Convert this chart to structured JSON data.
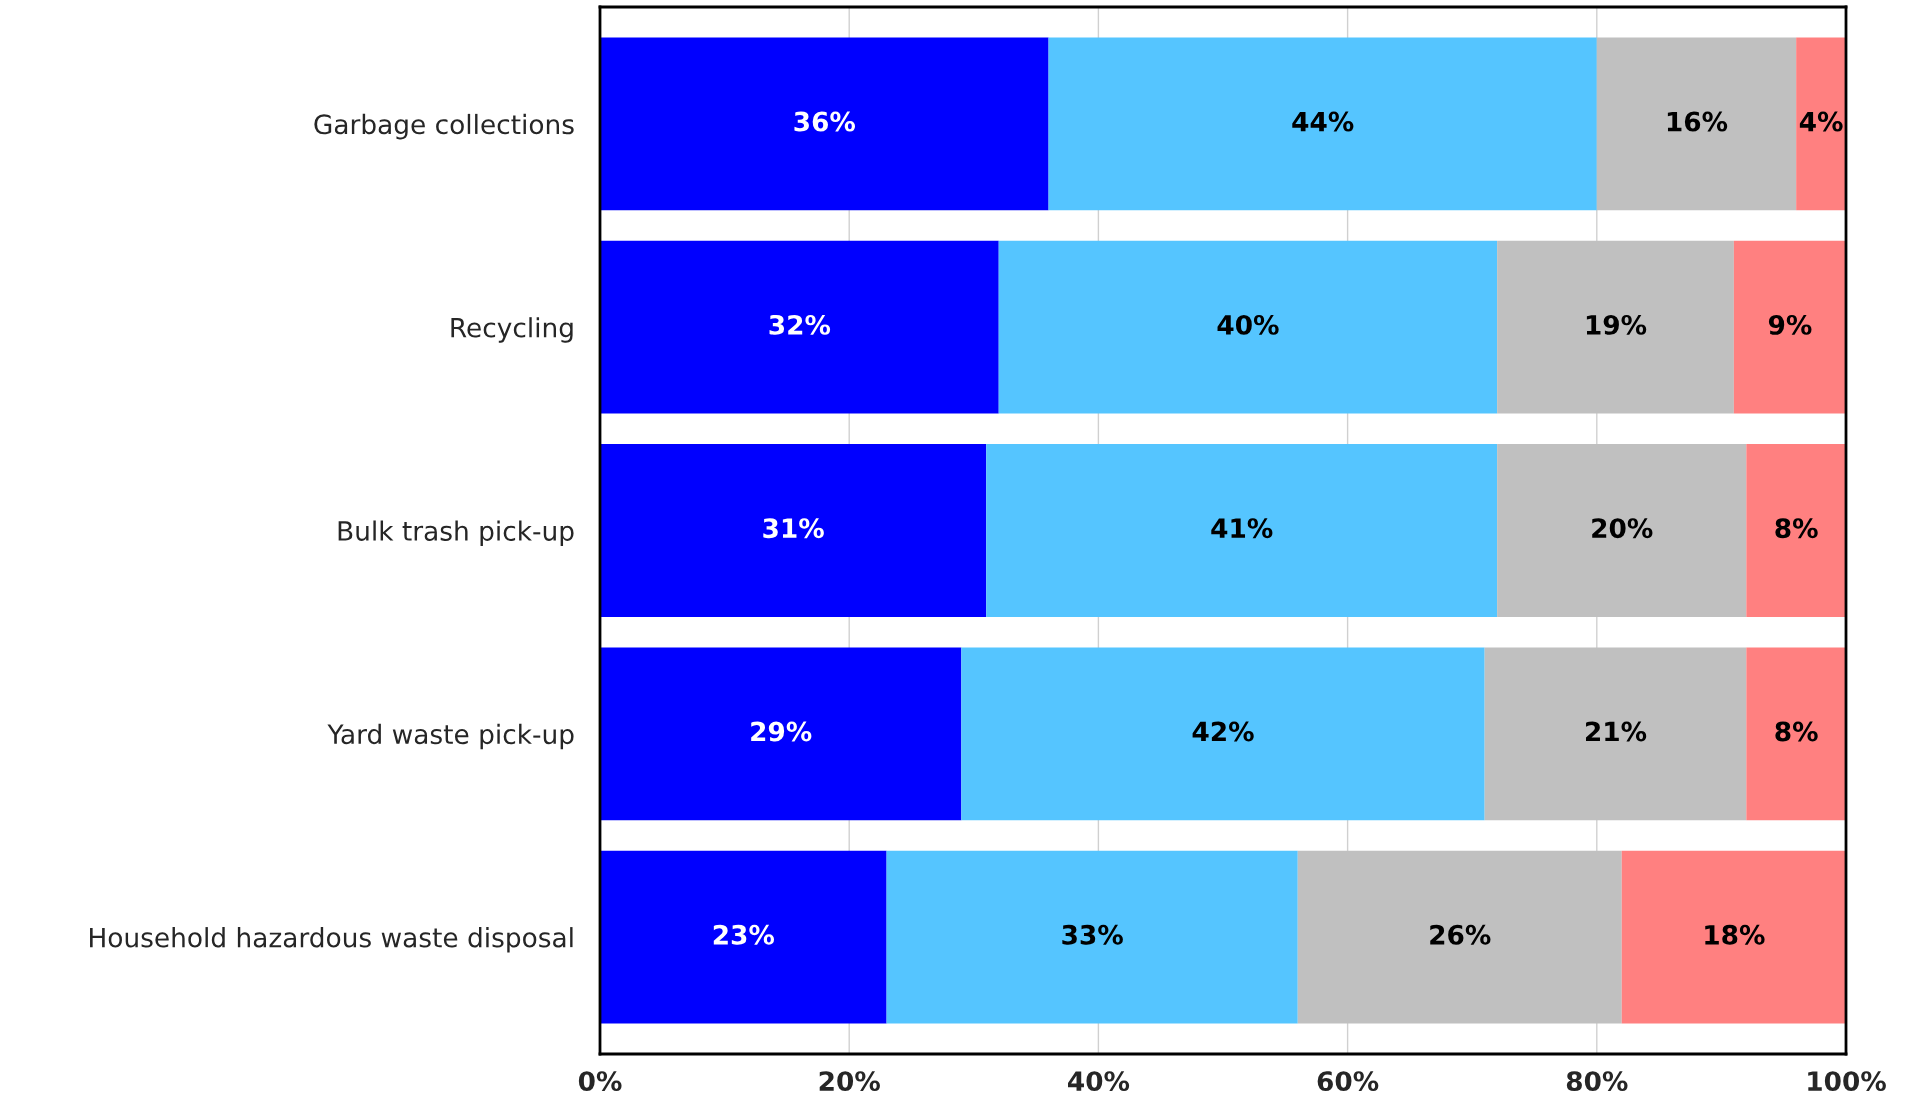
{
  "chart_data": {
    "type": "bar",
    "orientation": "horizontal",
    "stacked": true,
    "categories": [
      "Garbage collections",
      "Recycling",
      "Bulk trash pick-up",
      "Yard waste pick-up",
      "Household hazardous waste disposal"
    ],
    "series": [
      {
        "color": "#0000ff",
        "values": [
          36,
          32,
          31,
          29,
          23
        ],
        "value_labels": [
          "36%",
          "32%",
          "31%",
          "29%",
          "23%"
        ]
      },
      {
        "color": "#55c5ff",
        "values": [
          44,
          40,
          41,
          42,
          33
        ],
        "value_labels": [
          "44%",
          "40%",
          "41%",
          "42%",
          "33%"
        ]
      },
      {
        "color": "#c0c0c0",
        "values": [
          16,
          19,
          20,
          21,
          26
        ],
        "value_labels": [
          "16%",
          "19%",
          "20%",
          "21%",
          "26%"
        ]
      },
      {
        "color": "#ff8080",
        "values": [
          4,
          9,
          8,
          8,
          18
        ],
        "value_labels": [
          "4%",
          "9%",
          "8%",
          "8%",
          "18%"
        ]
      }
    ],
    "xlim": [
      0,
      100
    ],
    "xticks": [
      {
        "value": 0,
        "label": "0%"
      },
      {
        "value": 20,
        "label": "20%"
      },
      {
        "value": 40,
        "label": "40%"
      },
      {
        "value": 60,
        "label": "60%"
      },
      {
        "value": 80,
        "label": "80%"
      },
      {
        "value": 100,
        "label": "100%"
      }
    ],
    "grid": "x"
  }
}
